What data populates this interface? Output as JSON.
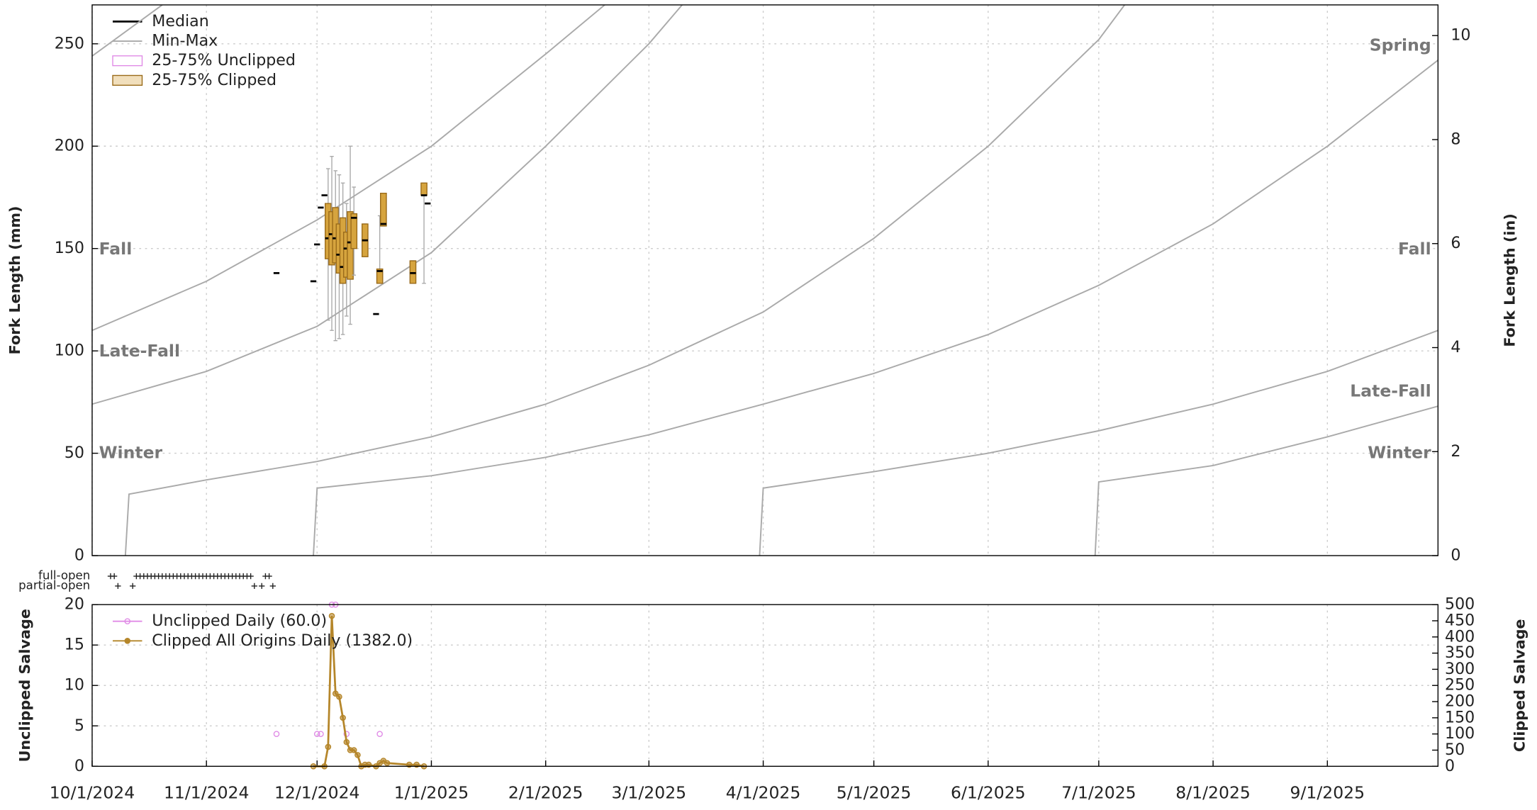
{
  "chart_data": [
    {
      "type": "box",
      "ylabel": "Fork Length (mm)",
      "y2label": "Fork Length (in)",
      "xlim": [
        "10/1/2024",
        "10/1/2025"
      ],
      "ylim": [
        0,
        269
      ],
      "yticks": [
        0,
        50,
        100,
        150,
        200,
        250
      ],
      "y2lim": [
        0,
        10.59
      ],
      "y2ticks": [
        0,
        2,
        4,
        6,
        8,
        10
      ],
      "grid": true,
      "legend_position": "upper left",
      "legend": [
        {
          "name": "Median",
          "color": "#000000",
          "style": "line"
        },
        {
          "name": "Min-Max",
          "color": "#aaaaaa",
          "style": "line"
        },
        {
          "name": "25-75% Unclipped",
          "color": "#e08be6",
          "style": "box"
        },
        {
          "name": "25-75% Clipped",
          "color": "#9a6b1a",
          "style": "box"
        }
      ],
      "box_color": "#d6a43e",
      "box_edge": "#9a6b1a",
      "whisker_color": "#aaaaaa",
      "median_color": "#000000",
      "boxes": [
        {
          "x": "11/20/2024",
          "min": 138,
          "q1": 138,
          "median": 138,
          "q3": 138,
          "max": 138
        },
        {
          "x": "11/30/2024",
          "min": 134,
          "q1": 134,
          "median": 134,
          "q3": 134,
          "max": 134
        },
        {
          "x": "12/1/2024",
          "min": 152,
          "q1": 152,
          "median": 152,
          "q3": 152,
          "max": 152
        },
        {
          "x": "12/2/2024",
          "min": 170,
          "q1": 170,
          "median": 170,
          "q3": 170,
          "max": 170
        },
        {
          "x": "12/3/2024",
          "min": 176,
          "q1": 176,
          "median": 176,
          "q3": 176,
          "max": 176
        },
        {
          "x": "12/4/2024",
          "min": 115,
          "q1": 145,
          "median": 155,
          "q3": 172,
          "max": 189
        },
        {
          "x": "12/5/2024",
          "min": 110,
          "q1": 142,
          "median": 157,
          "q3": 168,
          "max": 195
        },
        {
          "x": "12/6/2024",
          "min": 105,
          "q1": 143,
          "median": 155,
          "q3": 170,
          "max": 188
        },
        {
          "x": "12/7/2024",
          "min": 106,
          "q1": 138,
          "median": 147,
          "q3": 162,
          "max": 186
        },
        {
          "x": "12/8/2024",
          "min": 108,
          "q1": 133,
          "median": 141,
          "q3": 165,
          "max": 182
        },
        {
          "x": "12/9/2024",
          "min": 117,
          "q1": 136,
          "median": 150,
          "q3": 158,
          "max": 172
        },
        {
          "x": "12/10/2024",
          "min": 113,
          "q1": 135,
          "median": 153,
          "q3": 168,
          "max": 200
        },
        {
          "x": "12/11/2024",
          "min": 137,
          "q1": 150,
          "median": 165,
          "q3": 167,
          "max": 180
        },
        {
          "x": "12/14/2024",
          "min": 146,
          "q1": 146,
          "median": 154,
          "q3": 162,
          "max": 162
        },
        {
          "x": "12/17/2024",
          "min": 118,
          "q1": 118,
          "median": 118,
          "q3": 118,
          "max": 118
        },
        {
          "x": "12/18/2024",
          "min": 133,
          "q1": 133,
          "median": 139,
          "q3": 140,
          "max": 166
        },
        {
          "x": "12/19/2024",
          "min": 161,
          "q1": 161,
          "median": 162,
          "q3": 177,
          "max": 177
        },
        {
          "x": "12/27/2024",
          "min": 133,
          "q1": 133,
          "median": 138,
          "q3": 144,
          "max": 144
        },
        {
          "x": "12/30/2024",
          "min": 133,
          "q1": 176,
          "median": 176,
          "q3": 182,
          "max": 182
        },
        {
          "x": "12/31/2024",
          "min": 172,
          "q1": 172,
          "median": 172,
          "q3": 172,
          "max": 172
        }
      ],
      "curve_color": "#aaaaaa",
      "curves": [
        {
          "x": [
            "10/1/2024",
            "10/20/2024"
          ],
          "values": [
            244,
            269
          ]
        },
        {
          "x": [
            "10/1/2024",
            "11/1/2024",
            "12/1/2024",
            "1/1/2025",
            "2/1/2025",
            "2/17/2025"
          ],
          "values": [
            110,
            134,
            164,
            200,
            245,
            269
          ]
        },
        {
          "x": [
            "10/1/2024",
            "11/1/2024",
            "12/1/2024",
            "1/1/2025",
            "2/1/2025",
            "3/1/2025",
            "3/10/2025"
          ],
          "values": [
            74,
            90,
            112,
            148,
            200,
            250,
            269
          ]
        },
        {
          "x": [
            "10/10/2024",
            "10/11/2024",
            "11/1/2024",
            "12/1/2024",
            "1/1/2025",
            "2/1/2025",
            "3/1/2025",
            "4/1/2025",
            "5/1/2025",
            "6/1/2025",
            "7/1/2025",
            "7/8/2025"
          ],
          "values": [
            0,
            30,
            37,
            46,
            58,
            74,
            93,
            119,
            155,
            200,
            252,
            269
          ]
        },
        {
          "x": [
            "11/30/2024",
            "12/1/2024",
            "1/1/2025",
            "2/1/2025",
            "3/1/2025",
            "4/1/2025",
            "5/1/2025",
            "6/1/2025",
            "7/1/2025",
            "8/1/2025",
            "9/1/2025",
            "10/1/2025"
          ],
          "values": [
            0,
            33,
            39,
            48,
            59,
            74,
            89,
            108,
            132,
            162,
            200,
            242
          ]
        },
        {
          "x": [
            "3/31/2025",
            "4/1/2025",
            "5/1/2025",
            "6/1/2025",
            "7/1/2025",
            "8/1/2025",
            "9/1/2025",
            "10/1/2025"
          ],
          "values": [
            0,
            33,
            41,
            50,
            61,
            74,
            90,
            110
          ]
        },
        {
          "x": [
            "6/30/2025",
            "7/1/2025",
            "8/1/2025",
            "9/1/2025",
            "10/1/2025"
          ],
          "values": [
            0,
            36,
            44,
            58,
            73
          ]
        }
      ],
      "annotations": [
        {
          "text": "Fall",
          "side": "left"
        },
        {
          "text": "Late-Fall",
          "side": "left"
        },
        {
          "text": "Winter",
          "side": "left"
        },
        {
          "text": "Spring",
          "side": "right"
        },
        {
          "text": "Fall",
          "side": "right"
        },
        {
          "text": "Late-Fall",
          "side": "right"
        },
        {
          "text": "Winter",
          "side": "right"
        }
      ]
    },
    {
      "type": "events",
      "xlim": [
        "10/1/2024",
        "10/1/2025"
      ],
      "rows": [
        {
          "name": "full-open",
          "dates": [
            "10/6/2024",
            "10/7/2024",
            "10/13/2024",
            "10/14/2024",
            "10/15/2024",
            "10/16/2024",
            "10/17/2024",
            "10/18/2024",
            "10/19/2024",
            "10/20/2024",
            "10/21/2024",
            "10/22/2024",
            "10/23/2024",
            "10/24/2024",
            "10/25/2024",
            "10/26/2024",
            "10/27/2024",
            "10/28/2024",
            "10/29/2024",
            "10/30/2024",
            "10/31/2024",
            "11/1/2024",
            "11/2/2024",
            "11/3/2024",
            "11/4/2024",
            "11/5/2024",
            "11/6/2024",
            "11/7/2024",
            "11/8/2024",
            "11/9/2024",
            "11/10/2024",
            "11/11/2024",
            "11/12/2024",
            "11/13/2024",
            "11/17/2024",
            "11/18/2024"
          ]
        },
        {
          "name": "partial-open",
          "dates": [
            "10/8/2024",
            "10/12/2024",
            "11/14/2024",
            "11/16/2024",
            "11/19/2024"
          ]
        }
      ]
    },
    {
      "type": "line",
      "ylabel": "Unclipped Salvage",
      "y2label": "Clipped Salvage",
      "xlim": [
        "10/1/2024",
        "10/1/2025"
      ],
      "xticks": [
        "10/1/2024",
        "11/1/2024",
        "12/1/2024",
        "1/1/2025",
        "2/1/2025",
        "3/1/2025",
        "4/1/2025",
        "5/1/2025",
        "6/1/2025",
        "7/1/2025",
        "8/1/2025",
        "9/1/2025"
      ],
      "ylim": [
        0,
        20
      ],
      "yticks": [
        0,
        5,
        10,
        15,
        20
      ],
      "y2lim": [
        0,
        500
      ],
      "y2ticks": [
        0,
        50,
        100,
        150,
        200,
        250,
        300,
        350,
        400,
        450,
        500
      ],
      "grid": true,
      "legend_position": "upper left",
      "series": [
        {
          "name": "Unclipped Daily (60.0)",
          "color": "#e08be6",
          "line": false,
          "x": [
            "11/20/2024",
            "12/1/2024",
            "12/2/2024",
            "12/5/2024",
            "12/6/2024",
            "12/9/2024",
            "12/18/2024"
          ],
          "values": [
            4,
            4,
            4,
            20,
            20,
            4,
            4
          ]
        },
        {
          "name": "Clipped All Origins Daily (1382.0)",
          "color": "#b5862a",
          "line": true,
          "axis": "y2",
          "x": [
            "11/30/2024",
            "12/3/2024",
            "12/4/2024",
            "12/5/2024",
            "12/6/2024",
            "12/7/2024",
            "12/8/2024",
            "12/9/2024",
            "12/10/2024",
            "12/11/2024",
            "12/12/2024",
            "12/13/2024",
            "12/14/2024",
            "12/15/2024",
            "12/17/2024",
            "12/18/2024",
            "12/19/2024",
            "12/20/2024",
            "12/26/2024",
            "12/28/2024",
            "12/30/2024"
          ],
          "values": [
            0,
            0,
            60,
            465,
            225,
            215,
            150,
            75,
            50,
            50,
            35,
            0,
            5,
            5,
            0,
            10,
            17,
            10,
            5,
            5,
            0
          ]
        }
      ]
    }
  ]
}
